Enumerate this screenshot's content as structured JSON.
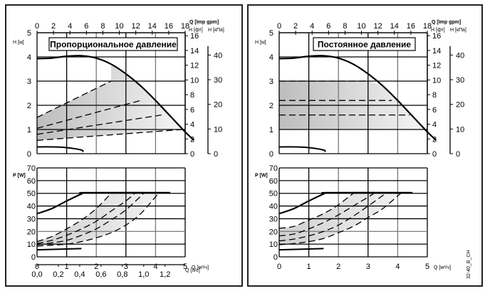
{
  "figure_code": "32-40_B_CH",
  "chart_data": [
    {
      "id": "left",
      "type": "line",
      "title": "Пропорциональное давление",
      "mode": "proportional",
      "top_axis": {
        "label": "Q [Imp gpm]",
        "ticks": [
          0,
          2,
          4,
          6,
          8,
          10,
          12,
          14,
          16,
          18
        ],
        "range": [
          0,
          18
        ]
      },
      "head": {
        "ylabel": "H [м]",
        "ylim": [
          0,
          5
        ],
        "yticks": [
          0,
          1,
          2,
          3,
          4,
          5
        ],
        "right_axis_ft": {
          "label": "H [фт]",
          "ticks": [
            0,
            2,
            4,
            6,
            8,
            10,
            12,
            14,
            16
          ]
        },
        "right_axis_kpa": {
          "label": "H [кПа]",
          "ticks": [
            0,
            10,
            20,
            30,
            40
          ]
        },
        "max_curve": [
          [
            0,
            3.93
          ],
          [
            0.5,
            3.95
          ],
          [
            1,
            4.03
          ],
          [
            1.5,
            4.05
          ],
          [
            2,
            3.95
          ],
          [
            2.5,
            3.7
          ],
          [
            3,
            3.3
          ],
          [
            3.5,
            2.8
          ],
          [
            4,
            2.2
          ],
          [
            4.5,
            1.55
          ],
          [
            5,
            0.9
          ],
          [
            5.3,
            0.55
          ]
        ],
        "min_curve": [
          [
            0,
            0.28
          ],
          [
            0.5,
            0.28
          ],
          [
            1,
            0.25
          ],
          [
            1.5,
            0.15
          ],
          [
            1.55,
            0.07
          ]
        ],
        "band_top": [
          [
            0,
            1.5
          ],
          [
            2.5,
            3.0
          ]
        ],
        "band_bottom": [
          [
            0,
            0.55
          ],
          [
            4.9,
            1.0
          ]
        ],
        "dashed_curves": [
          [
            [
              0,
              1.05
            ],
            [
              3.5,
              2.2
            ]
          ],
          [
            [
              0,
              0.8
            ],
            [
              4.2,
              1.6
            ]
          ]
        ]
      },
      "power": {
        "ylabel": "P [W]",
        "ylim": [
          0,
          70
        ],
        "yticks": [
          0,
          10,
          20,
          30,
          40,
          50,
          60,
          70
        ],
        "xlabel": "Q [м³/ч]",
        "xlim": [
          0,
          5
        ],
        "xticks": [
          0,
          1,
          2,
          3,
          4,
          5
        ],
        "max_curve": [
          [
            0,
            34
          ],
          [
            0.5,
            38
          ],
          [
            1,
            44
          ],
          [
            1.5,
            49.5
          ],
          [
            1.7,
            50.5
          ],
          [
            4.5,
            50.5
          ]
        ],
        "min_curve": [
          [
            0,
            5.5
          ],
          [
            1.5,
            6.5
          ]
        ],
        "band_top": [
          [
            0,
            12
          ],
          [
            0.5,
            16
          ],
          [
            1,
            22
          ],
          [
            1.5,
            29
          ],
          [
            2,
            38
          ],
          [
            2.5,
            50
          ]
        ],
        "band_bottom": [
          [
            0,
            8.5
          ],
          [
            1,
            10
          ],
          [
            1.5,
            12
          ],
          [
            2,
            15
          ],
          [
            2.5,
            19
          ],
          [
            3,
            25
          ],
          [
            3.5,
            34
          ],
          [
            4.1,
            50
          ]
        ],
        "dashed_curves": [
          [
            [
              0,
              10.5
            ],
            [
              0.5,
              13
            ],
            [
              1,
              17
            ],
            [
              1.5,
              22
            ],
            [
              2,
              28
            ],
            [
              2.5,
              36
            ],
            [
              3,
              44
            ],
            [
              3.3,
              50
            ]
          ],
          [
            [
              0,
              9.5
            ],
            [
              0.5,
              11
            ],
            [
              1,
              13
            ],
            [
              1.5,
              17
            ],
            [
              2,
              22
            ],
            [
              2.5,
              29
            ],
            [
              3,
              37
            ],
            [
              3.6,
              50
            ]
          ]
        ]
      },
      "bottom_axis": {
        "label": "Q [л/с]",
        "ticks": [
          "0,0",
          "0,2",
          "0,4",
          "0,6",
          "0,8",
          "1,0",
          "1,2"
        ],
        "range": [
          0,
          1.3889
        ]
      }
    },
    {
      "id": "right",
      "type": "line",
      "title": "Постоянное давление",
      "mode": "constant",
      "top_axis": {
        "label": "Q [Imp gpm]",
        "ticks": [
          0,
          2,
          4,
          6,
          8,
          10,
          12,
          14,
          16,
          18
        ],
        "range": [
          0,
          18
        ]
      },
      "head": {
        "ylabel": "H [м]",
        "ylim": [
          0,
          5
        ],
        "yticks": [
          0,
          1,
          2,
          3,
          4,
          5
        ],
        "right_axis_ft": {
          "label": "H [фт]",
          "ticks": [
            0,
            2,
            4,
            6,
            8,
            10,
            12,
            14,
            16
          ]
        },
        "right_axis_kpa": {
          "label": "H [кПа]",
          "ticks": [
            0,
            10,
            20,
            30,
            40
          ]
        },
        "max_curve": [
          [
            0,
            3.93
          ],
          [
            0.5,
            3.95
          ],
          [
            1,
            4.03
          ],
          [
            1.5,
            4.05
          ],
          [
            2,
            3.95
          ],
          [
            2.5,
            3.7
          ],
          [
            3,
            3.3
          ],
          [
            3.5,
            2.8
          ],
          [
            4,
            2.2
          ],
          [
            4.5,
            1.55
          ],
          [
            5,
            0.9
          ],
          [
            5.3,
            0.55
          ]
        ],
        "min_curve": [
          [
            0,
            0.28
          ],
          [
            0.5,
            0.28
          ],
          [
            1,
            0.25
          ],
          [
            1.5,
            0.15
          ],
          [
            1.55,
            0.07
          ]
        ],
        "band_levels": [
          1.0,
          3.0
        ],
        "dashed_levels": [
          2.2,
          1.6
        ]
      },
      "power": {
        "ylabel": "P [W]",
        "ylim": [
          0,
          70
        ],
        "yticks": [
          0,
          10,
          20,
          30,
          40,
          50,
          60,
          70
        ],
        "xlabel": "Q [м³/ч]",
        "xlim": [
          0,
          5
        ],
        "xticks": [
          0,
          1,
          2,
          3,
          4,
          5
        ],
        "max_curve": [
          [
            0,
            34
          ],
          [
            0.5,
            38
          ],
          [
            1,
            44
          ],
          [
            1.5,
            49.5
          ],
          [
            1.7,
            50.5
          ],
          [
            4.5,
            50.5
          ]
        ],
        "min_curve": [
          [
            0,
            5.5
          ],
          [
            1.5,
            6.5
          ]
        ],
        "band_top": [
          [
            0,
            22.5
          ],
          [
            0.5,
            24
          ],
          [
            1,
            29
          ],
          [
            1.5,
            34
          ],
          [
            2,
            41
          ],
          [
            2.5,
            50
          ]
        ],
        "band_bottom": [
          [
            0,
            9.5
          ],
          [
            0.5,
            10.5
          ],
          [
            1,
            12
          ],
          [
            1.5,
            14.5
          ],
          [
            2,
            19
          ],
          [
            2.5,
            24
          ],
          [
            3,
            31
          ],
          [
            3.5,
            38
          ],
          [
            4.1,
            50
          ]
        ],
        "dashed_curves": [
          [
            [
              0,
              16.5
            ],
            [
              0.5,
              18
            ],
            [
              1,
              22
            ],
            [
              1.5,
              27
            ],
            [
              2,
              33
            ],
            [
              2.5,
              40
            ],
            [
              3,
              47
            ],
            [
              3.2,
              50
            ]
          ],
          [
            [
              0,
              12.5
            ],
            [
              0.5,
              14
            ],
            [
              1,
              16.5
            ],
            [
              1.5,
              20
            ],
            [
              2,
              25
            ],
            [
              2.5,
              32
            ],
            [
              3,
              40
            ],
            [
              3.6,
              50
            ]
          ]
        ]
      }
    }
  ]
}
